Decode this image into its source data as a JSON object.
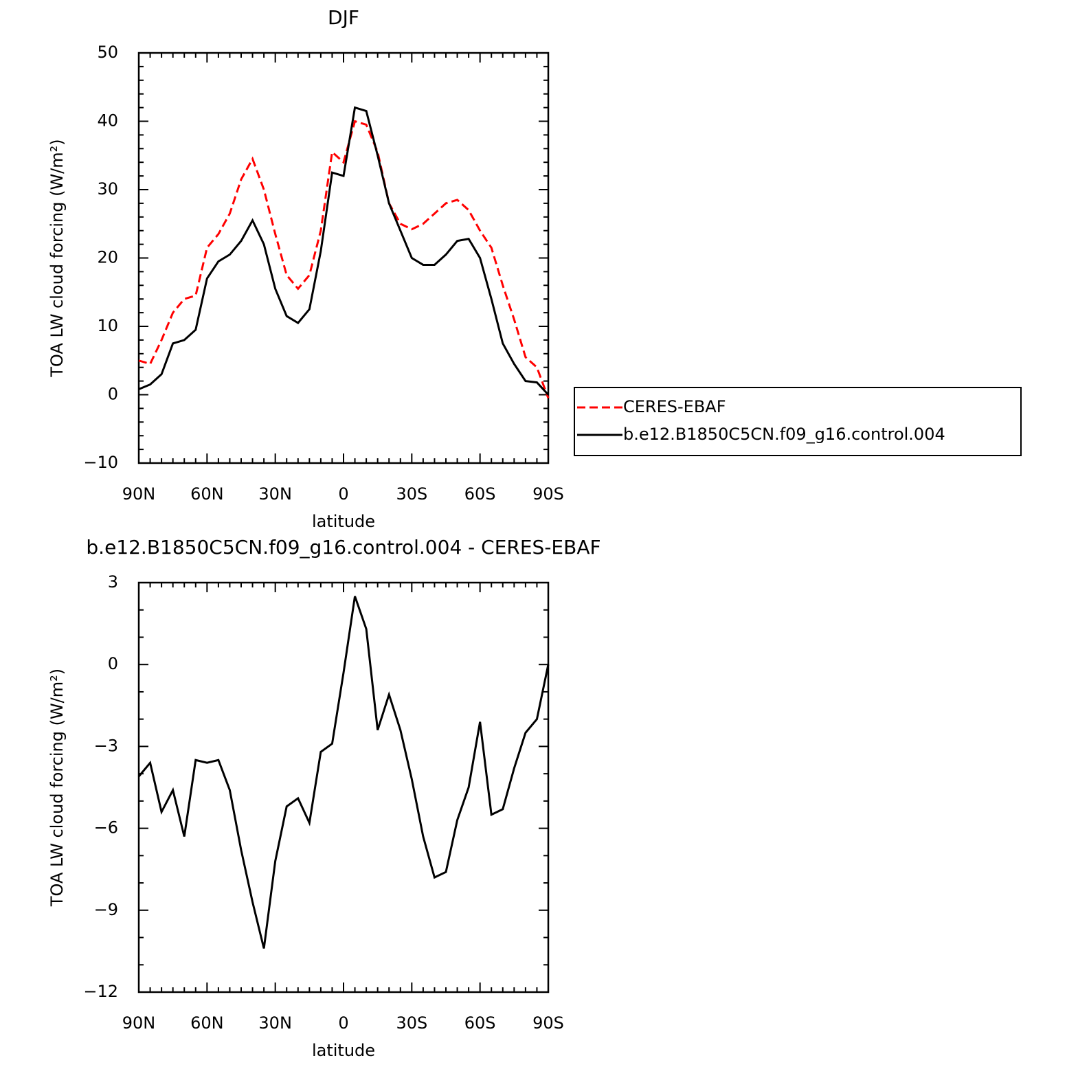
{
  "chart_data": [
    {
      "type": "line",
      "title": "DJF",
      "xlabel": "latitude",
      "ylabel": "TOA LW cloud forcing (W/m²)",
      "x": [
        90,
        85,
        80,
        75,
        70,
        65,
        60,
        55,
        50,
        45,
        40,
        35,
        30,
        25,
        20,
        15,
        10,
        5,
        0,
        -5,
        -10,
        -15,
        -20,
        -25,
        -30,
        -35,
        -40,
        -45,
        -50,
        -55,
        -60,
        -65,
        -70,
        -75,
        -80,
        -85,
        -90
      ],
      "series": [
        {
          "name": "CERES-EBAF",
          "color": "#ff0000",
          "style": "dashed",
          "values": [
            5,
            4.5,
            8,
            12,
            14,
            14.5,
            21.5,
            23.5,
            26.5,
            31.5,
            34.5,
            30,
            23.5,
            17.5,
            15.5,
            17.5,
            24,
            35.5,
            34,
            40,
            39.5,
            35.5,
            28,
            25,
            24.2,
            25,
            26.5,
            28,
            28.5,
            27,
            24,
            21.5,
            16,
            11,
            5.5,
            4,
            -0.5
          ]
        },
        {
          "name": "b.e12.B1850C5CN.f09_g16.control.004",
          "color": "#000000",
          "style": "solid",
          "values": [
            0.8,
            1.5,
            3,
            7.5,
            8,
            9.5,
            17,
            19.5,
            20.5,
            22.5,
            25.5,
            22,
            15.5,
            11.5,
            10.5,
            12.5,
            21,
            32.5,
            32,
            42,
            41.5,
            35,
            28,
            24,
            20,
            19,
            19,
            20.5,
            22.5,
            22.8,
            20,
            14,
            7.5,
            4.5,
            2,
            1.8,
            0
          ]
        }
      ],
      "xlim": [
        90,
        -90
      ],
      "xticks": [
        {
          "value": 90,
          "label": "90N"
        },
        {
          "value": 60,
          "label": "60N"
        },
        {
          "value": 30,
          "label": "30N"
        },
        0,
        {
          "value": -30,
          "label": "30S"
        },
        {
          "value": -60,
          "label": "60S"
        },
        {
          "value": -90,
          "label": "90S"
        }
      ],
      "ylim": [
        -10,
        50
      ],
      "yticks": [
        {
          "value": -10,
          "label": "−10"
        },
        0,
        10,
        20,
        30,
        40,
        50
      ],
      "legend": "right"
    },
    {
      "type": "line",
      "title": "b.e12.B1850C5CN.f09_g16.control.004 - CERES-EBAF",
      "xlabel": "latitude",
      "ylabel": "TOA LW cloud forcing (W/m²)",
      "x": [
        90,
        85,
        80,
        75,
        70,
        65,
        60,
        55,
        50,
        45,
        40,
        35,
        30,
        25,
        20,
        15,
        10,
        5,
        0,
        -5,
        -10,
        -15,
        -20,
        -25,
        -30,
        -35,
        -40,
        -45,
        -50,
        -55,
        -60,
        -65,
        -70,
        -75,
        -80,
        -85,
        -90
      ],
      "series": [
        {
          "color": "#000000",
          "style": "solid",
          "values": [
            -4.1,
            -3.6,
            -5.4,
            -4.6,
            -6.3,
            -3.5,
            -3.6,
            -3.5,
            -4.6,
            -6.8,
            -8.7,
            -10.4,
            -7.2,
            -5.2,
            -4.9,
            -5.8,
            -3.2,
            -2.9,
            -0.3,
            2.5,
            1.3,
            -2.4,
            -1.1,
            -2.4,
            -4.2,
            -6.3,
            -7.8,
            -7.6,
            -5.7,
            -4.5,
            -2.1,
            -5.5,
            -5.3,
            -3.8,
            -2.5,
            -2,
            0
          ]
        }
      ],
      "xlim": [
        90,
        -90
      ],
      "xticks": [
        {
          "value": 90,
          "label": "90N"
        },
        {
          "value": 60,
          "label": "60N"
        },
        {
          "value": 30,
          "label": "30N"
        },
        0,
        {
          "value": -30,
          "label": "30S"
        },
        {
          "value": -60,
          "label": "60S"
        },
        {
          "value": -90,
          "label": "90S"
        }
      ],
      "ylim": [
        -12,
        3
      ],
      "yticks": [
        {
          "value": -12,
          "label": "−12"
        },
        {
          "value": -9,
          "label": "−9"
        },
        {
          "value": -6,
          "label": "−6"
        },
        {
          "value": -3,
          "label": "−3"
        },
        0,
        3
      ]
    }
  ]
}
